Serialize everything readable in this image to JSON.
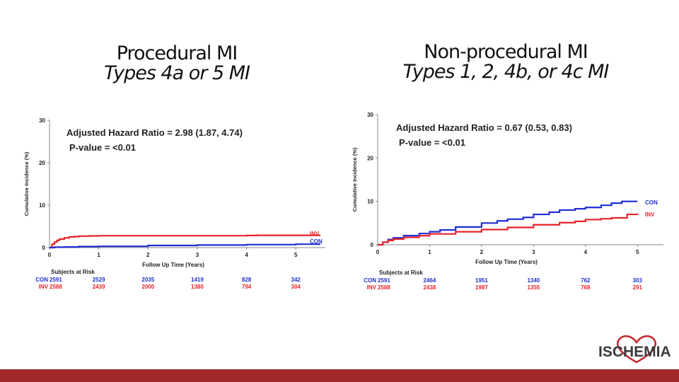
{
  "headings": [
    {
      "title": "Procedural MI",
      "subtitle": "Types 4a or 5 MI"
    },
    {
      "title": "Non-procedural MI",
      "subtitle": "Types 1, 2, 4b, or 4c MI"
    }
  ],
  "logo": {
    "text": "ISCHEMIA"
  },
  "colors": {
    "con": "#1f2fd0",
    "inv": "#e8242a",
    "bar": "#a0282a"
  },
  "chart_data": [
    {
      "type": "line",
      "xlabel": "Follow Up Time (Years)",
      "ylabel": "Cumulative Incidence (%)",
      "xlim": [
        0,
        5.6
      ],
      "ylim": [
        0,
        30
      ],
      "x_ticks": [
        "0",
        "1",
        "2",
        "3",
        "4",
        "5"
      ],
      "y_ticks": [
        "0",
        "10",
        "20",
        "30"
      ],
      "annotation_lines": [
        "Adjusted Hazard Ratio = 2.98 (1.87, 4.74)",
        "P-value = <0.01"
      ],
      "series": [
        {
          "name": "INV",
          "color": "#e8242a",
          "x": [
            0,
            0.05,
            0.1,
            0.15,
            0.2,
            0.3,
            0.4,
            0.5,
            0.6,
            0.8,
            1,
            2,
            3,
            4,
            4.2,
            5,
            5.5
          ],
          "y": [
            0,
            0.8,
            1.3,
            1.7,
            2,
            2.3,
            2.5,
            2.6,
            2.7,
            2.75,
            2.8,
            2.8,
            2.8,
            2.85,
            2.9,
            2.9,
            2.9
          ]
        },
        {
          "name": "CON",
          "color": "#1f2fd0",
          "x": [
            0,
            0.1,
            0.3,
            0.6,
            1,
            2,
            3,
            4,
            5,
            5.5
          ],
          "y": [
            0,
            0.1,
            0.15,
            0.25,
            0.3,
            0.5,
            0.6,
            0.7,
            0.8,
            0.8
          ]
        }
      ],
      "risk_table": {
        "title": "Subjects at Risk",
        "rows": [
          {
            "label": "CON",
            "color": "#1f2fd0",
            "values": [
              "2591",
              "2529",
              "2035",
              "1419",
              "828",
              "342"
            ]
          },
          {
            "label": "INV",
            "color": "#e8242a",
            "values": [
              "2588",
              "2439",
              "2000",
              "1380",
              "794",
              "304"
            ]
          }
        ]
      }
    },
    {
      "type": "line",
      "xlabel": "Follow Up Time (Years)",
      "ylabel": "Cumulative Incidence (%)",
      "xlim": [
        0,
        5.5
      ],
      "ylim": [
        0,
        30
      ],
      "x_ticks": [
        "0",
        "1",
        "2",
        "3",
        "4",
        "5"
      ],
      "y_ticks": [
        "0",
        "10",
        "20",
        "30"
      ],
      "annotation_lines": [
        "Adjusted Hazard Ratio = 0.67 (0.53, 0.83)",
        "P-value = <0.01"
      ],
      "series": [
        {
          "name": "CON",
          "color": "#1f2fd0",
          "x": [
            0,
            0.1,
            0.2,
            0.3,
            0.5,
            0.8,
            1,
            1.2,
            1.5,
            2,
            2.3,
            2.5,
            2.8,
            3,
            3.3,
            3.5,
            3.8,
            4,
            4.3,
            4.5,
            4.7,
            5
          ],
          "y": [
            0,
            0.6,
            1.2,
            1.6,
            2.1,
            2.6,
            3,
            3.4,
            4.1,
            5,
            5.5,
            5.9,
            6.3,
            7,
            7.5,
            8,
            8.3,
            8.6,
            9.1,
            9.6,
            10,
            10
          ]
        },
        {
          "name": "INV",
          "color": "#e8242a",
          "x": [
            0,
            0.1,
            0.2,
            0.3,
            0.5,
            0.8,
            1,
            1.5,
            2,
            2.5,
            3,
            3.5,
            3.8,
            4,
            4.3,
            4.5,
            4.8,
            5
          ],
          "y": [
            0,
            0.6,
            1,
            1.3,
            1.7,
            2.1,
            2.5,
            3,
            3.5,
            4,
            4.6,
            5.1,
            5.4,
            5.8,
            6,
            6.2,
            7,
            7.2
          ]
        }
      ],
      "risk_table": {
        "title": "Subjects at Risk",
        "rows": [
          {
            "label": "CON",
            "color": "#1f2fd0",
            "values": [
              "2591",
              "2464",
              "1951",
              "1340",
              "762",
              "303"
            ]
          },
          {
            "label": "INV",
            "color": "#e8242a",
            "values": [
              "2588",
              "2438",
              "1987",
              "1355",
              "768",
              "291"
            ]
          }
        ]
      }
    }
  ]
}
